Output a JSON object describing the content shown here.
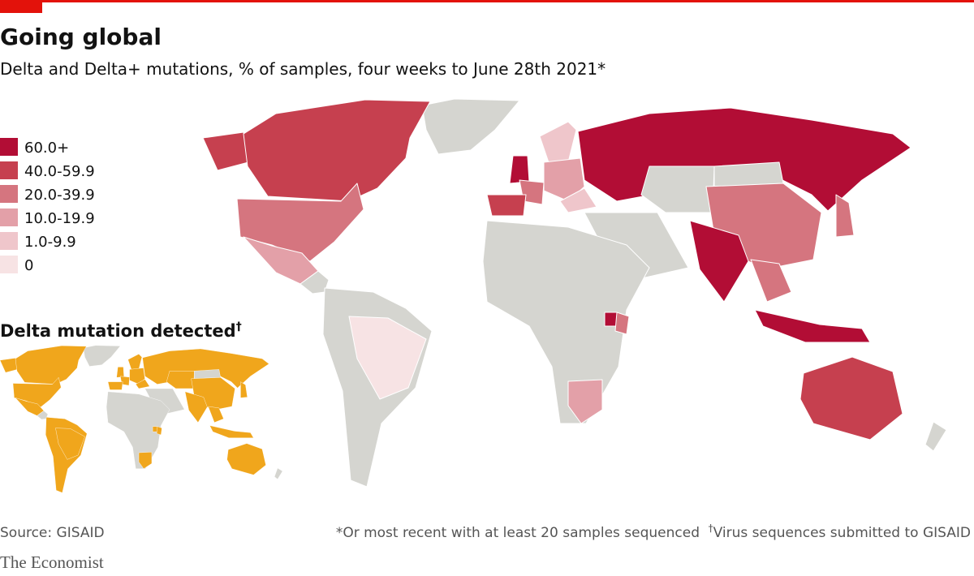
{
  "header": {
    "title": "Going global",
    "subtitle": "Delta and Delta+ mutations, % of samples, four weeks to June 28th 2021*"
  },
  "legend": {
    "items": [
      {
        "label": "60.0+",
        "color": "#b20d35"
      },
      {
        "label": "40.0-59.9",
        "color": "#c6404f"
      },
      {
        "label": "20.0-39.9",
        "color": "#d5757f"
      },
      {
        "label": "10.0-19.9",
        "color": "#e3a0a8"
      },
      {
        "label": "1.0-9.9",
        "color": "#efc6cb"
      },
      {
        "label": "0",
        "color": "#f7e3e4"
      }
    ]
  },
  "inset": {
    "title": "Delta mutation detected",
    "mark": "†",
    "color": "#f0a61c"
  },
  "footer": {
    "source": "Source: GISAID",
    "note_1": "*Or most recent with at least 20 samples sequenced",
    "note_2_mark": "†",
    "note_2": "Virus sequences submitted to GISAID",
    "brand": "The Economist"
  }
}
